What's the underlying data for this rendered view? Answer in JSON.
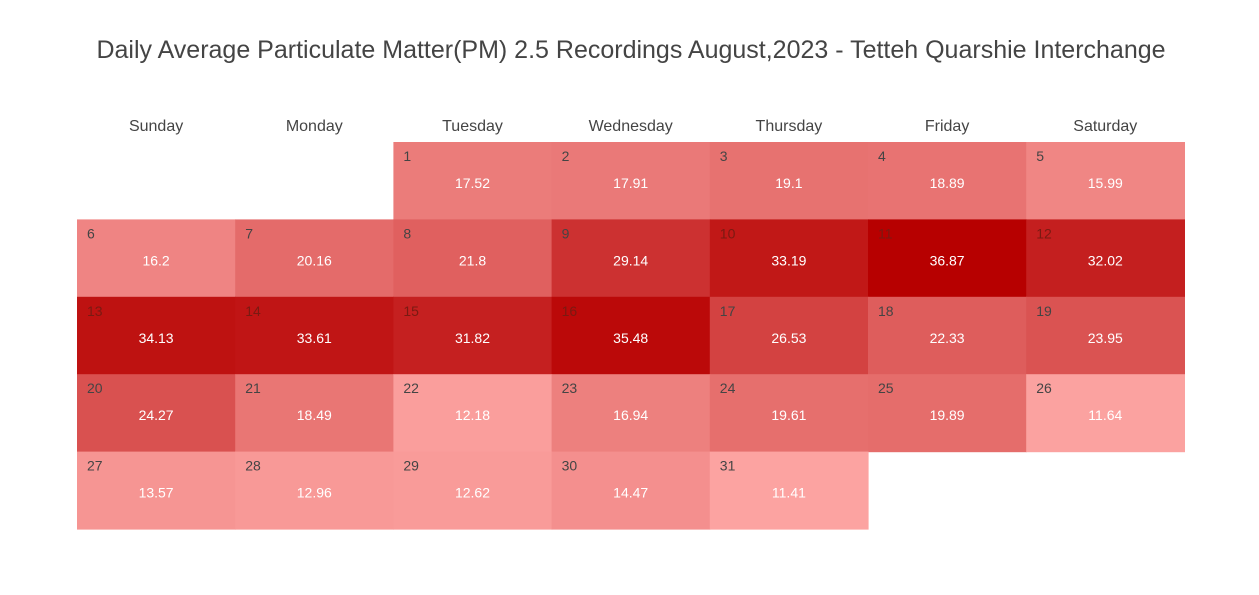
{
  "chart_data": {
    "type": "heatmap",
    "title": "Daily Average Particulate Matter(PM) 2.5 Recordings August,2023 - Tetteh Quarshie Interchange",
    "weekdays": [
      "Sunday",
      "Monday",
      "Tuesday",
      "Wednesday",
      "Thursday",
      "Friday",
      "Saturday"
    ],
    "first_weekday_index": 2,
    "days": [
      1,
      2,
      3,
      4,
      5,
      6,
      7,
      8,
      9,
      10,
      11,
      12,
      13,
      14,
      15,
      16,
      17,
      18,
      19,
      20,
      21,
      22,
      23,
      24,
      25,
      26,
      27,
      28,
      29,
      30,
      31
    ],
    "values": [
      "17.52",
      "17.91",
      "19.1",
      "18.89",
      "15.99",
      "16.2",
      "20.16",
      "21.8",
      "29.14",
      "33.19",
      "36.87",
      "32.02",
      "34.13",
      "33.61",
      "31.82",
      "35.48",
      "26.53",
      "22.33",
      "23.95",
      "24.27",
      "18.49",
      "12.18",
      "16.94",
      "19.61",
      "19.89",
      "11.64",
      "13.57",
      "12.96",
      "12.62",
      "14.47",
      "11.41"
    ],
    "color_scale": {
      "min_value": 11.41,
      "max_value": 36.87,
      "low_color": "#fca3a1",
      "high_color": "#b70000"
    },
    "grid": false
  }
}
